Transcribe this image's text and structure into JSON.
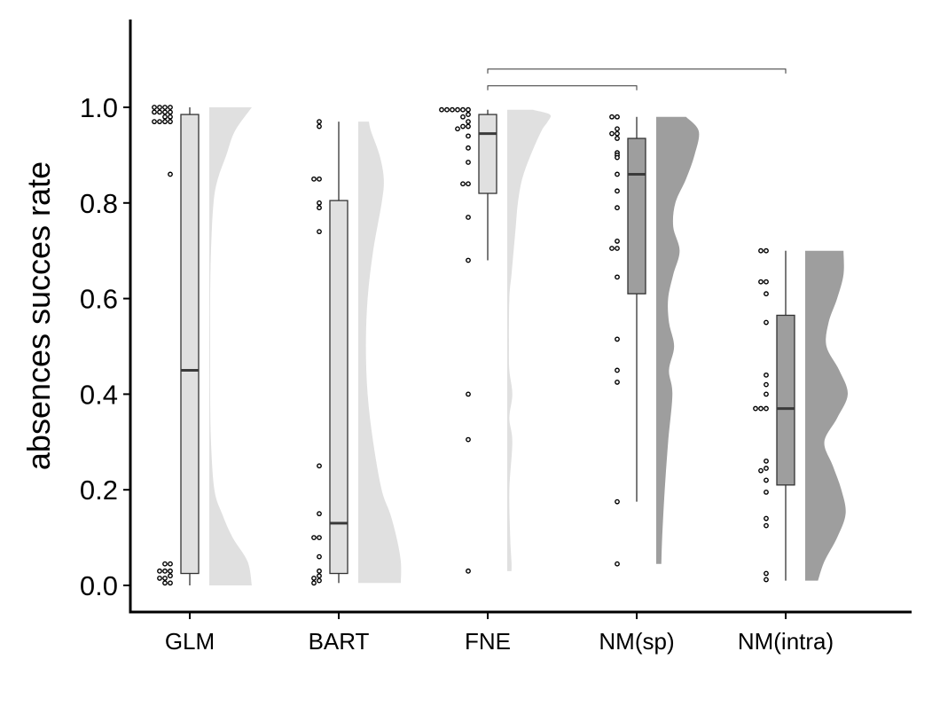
{
  "chart_data": {
    "type": "raincloud",
    "title": "",
    "xlabel": "",
    "ylabel": "absences succes rate",
    "ylim": [
      -0.05,
      1.17
    ],
    "yticks": [
      0.0,
      0.2,
      0.4,
      0.6,
      0.8,
      1.0
    ],
    "ytick_labels": [
      "0.0",
      "0.2",
      "0.4",
      "0.6",
      "0.8",
      "1.0"
    ],
    "grid": false,
    "categories": [
      "GLM",
      "BART",
      "FNE",
      "NM(sp)",
      "NM(intra)"
    ],
    "colors": {
      "light_fill": "#e0e0e0",
      "dark_fill": "#9e9e9e",
      "stroke": "#333333",
      "median": "#3a3a3a"
    },
    "groups": [
      {
        "name": "GLM",
        "fill": "light",
        "box": {
          "whisker_low": 0.0,
          "q1": 0.025,
          "median": 0.45,
          "q3": 0.985,
          "whisker_high": 1.0
        },
        "points": [
          1.0,
          1.0,
          1.0,
          1.0,
          0.99,
          0.99,
          0.99,
          0.99,
          0.98,
          0.98,
          0.97,
          0.97,
          0.97,
          0.97,
          0.86,
          0.045,
          0.045,
          0.03,
          0.03,
          0.03,
          0.02,
          0.015,
          0.015,
          0.005,
          0.005
        ],
        "density": {
          "y": [
            0.0,
            0.05,
            0.1,
            0.15,
            0.2,
            0.3,
            0.4,
            0.5,
            0.6,
            0.7,
            0.8,
            0.85,
            0.9,
            0.95,
            1.0
          ],
          "w": [
            1.0,
            0.9,
            0.55,
            0.3,
            0.12,
            0.04,
            0.02,
            0.02,
            0.02,
            0.04,
            0.1,
            0.2,
            0.4,
            0.6,
            1.0
          ]
        }
      },
      {
        "name": "BART",
        "fill": "light",
        "box": {
          "whisker_low": 0.005,
          "q1": 0.025,
          "median": 0.13,
          "q3": 0.805,
          "whisker_high": 0.97
        },
        "points": [
          0.97,
          0.96,
          0.85,
          0.85,
          0.8,
          0.79,
          0.74,
          0.25,
          0.15,
          0.1,
          0.1,
          0.06,
          0.03,
          0.02,
          0.015,
          0.01,
          0.005
        ],
        "density": {
          "y": [
            0.005,
            0.05,
            0.1,
            0.15,
            0.2,
            0.3,
            0.4,
            0.5,
            0.6,
            0.7,
            0.8,
            0.85,
            0.9,
            0.95,
            0.97
          ],
          "w": [
            1.0,
            1.0,
            0.9,
            0.75,
            0.55,
            0.35,
            0.22,
            0.18,
            0.22,
            0.35,
            0.55,
            0.6,
            0.5,
            0.3,
            0.25
          ]
        }
      },
      {
        "name": "FNE",
        "fill": "light",
        "box": {
          "whisker_low": 0.68,
          "q1": 0.82,
          "median": 0.945,
          "q3": 0.985,
          "whisker_high": 0.995
        },
        "points": [
          0.995,
          0.995,
          0.995,
          0.995,
          0.995,
          0.995,
          0.985,
          0.98,
          0.97,
          0.96,
          0.96,
          0.955,
          0.94,
          0.915,
          0.885,
          0.84,
          0.84,
          0.77,
          0.68,
          0.4,
          0.305,
          0.03
        ],
        "density": {
          "y": [
            0.03,
            0.05,
            0.1,
            0.2,
            0.3,
            0.35,
            0.4,
            0.45,
            0.5,
            0.6,
            0.65,
            0.7,
            0.75,
            0.8,
            0.85,
            0.9,
            0.95,
            0.97,
            0.985,
            0.995
          ],
          "w": [
            0.1,
            0.1,
            0.07,
            0.05,
            0.12,
            0.05,
            0.12,
            0.05,
            0.04,
            0.05,
            0.1,
            0.15,
            0.2,
            0.25,
            0.35,
            0.55,
            0.8,
            0.95,
            1.0,
            0.6
          ]
        }
      },
      {
        "name": "NM(sp)",
        "fill": "dark",
        "box": {
          "whisker_low": 0.175,
          "q1": 0.61,
          "median": 0.86,
          "q3": 0.935,
          "whisker_high": 0.98
        },
        "points": [
          0.98,
          0.98,
          0.955,
          0.945,
          0.945,
          0.935,
          0.905,
          0.9,
          0.895,
          0.86,
          0.825,
          0.79,
          0.72,
          0.705,
          0.705,
          0.645,
          0.515,
          0.45,
          0.425,
          0.175,
          0.045
        ],
        "density": {
          "y": [
            0.045,
            0.1,
            0.2,
            0.3,
            0.4,
            0.45,
            0.5,
            0.55,
            0.6,
            0.65,
            0.7,
            0.75,
            0.8,
            0.85,
            0.9,
            0.95,
            0.98
          ],
          "w": [
            0.12,
            0.14,
            0.2,
            0.28,
            0.38,
            0.3,
            0.42,
            0.3,
            0.28,
            0.4,
            0.55,
            0.4,
            0.45,
            0.7,
            0.9,
            1.0,
            0.7
          ]
        }
      },
      {
        "name": "NM(intra)",
        "fill": "dark",
        "box": {
          "whisker_low": 0.01,
          "q1": 0.21,
          "median": 0.37,
          "q3": 0.565,
          "whisker_high": 0.7
        },
        "points": [
          0.7,
          0.7,
          0.635,
          0.635,
          0.61,
          0.55,
          0.44,
          0.42,
          0.4,
          0.37,
          0.37,
          0.37,
          0.26,
          0.245,
          0.24,
          0.22,
          0.195,
          0.14,
          0.125,
          0.025,
          0.012
        ],
        "density": {
          "y": [
            0.01,
            0.05,
            0.1,
            0.15,
            0.2,
            0.25,
            0.3,
            0.35,
            0.4,
            0.45,
            0.5,
            0.55,
            0.6,
            0.65,
            0.7
          ],
          "w": [
            0.3,
            0.45,
            0.75,
            0.95,
            0.85,
            0.65,
            0.45,
            0.75,
            1.0,
            0.8,
            0.5,
            0.55,
            0.75,
            0.9,
            0.9
          ]
        }
      }
    ],
    "annotations": [
      {
        "type": "bracket",
        "from": "FNE",
        "to": "NM(sp)",
        "y": 1.045
      },
      {
        "type": "bracket",
        "from": "FNE",
        "to": "NM(intra)",
        "y": 1.08
      }
    ]
  }
}
